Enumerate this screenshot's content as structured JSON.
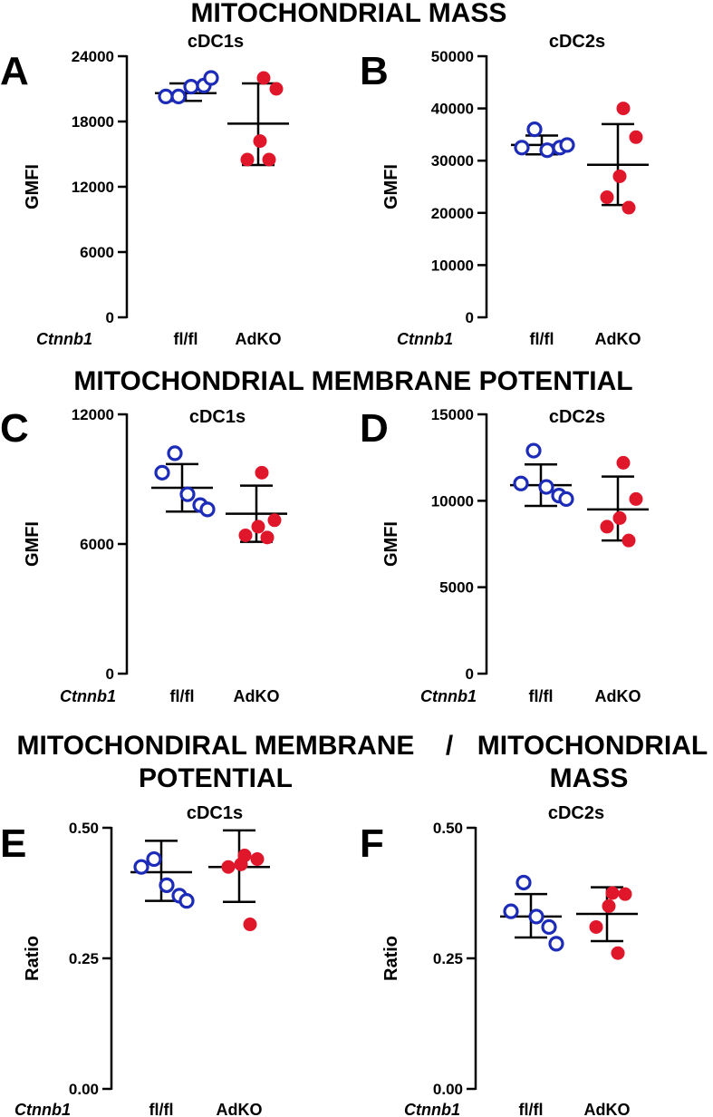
{
  "colors": {
    "flfl": "#1c2bb8",
    "adko": "#e0162b",
    "axis": "#000000"
  },
  "section_titles": {
    "s1": "MITOCHONDRIAL MASS",
    "s2": "MITOCHONDRIAL MEMBRANE POTENTIAL",
    "s3_left_line1": "MITOCHONDIRAL MEMBRANE",
    "s3_slash": "/",
    "s3_right_line1": "MITOCHONDRIAL",
    "s3_left_line2": "POTENTIAL",
    "s3_right_line2": "MASS"
  },
  "chart_data": [
    {
      "panel": "A",
      "type": "scatter",
      "title": "cDC1s",
      "ylabel": "GMFI",
      "xlabel_gene": "Ctnnb1",
      "categories": [
        "fl/fl",
        "AdKO"
      ],
      "ylim": [
        0,
        24000
      ],
      "yticks": [
        0,
        6000,
        12000,
        18000,
        24000
      ],
      "yticklabels": [
        "0",
        "6000",
        "12000",
        "18000",
        "24000"
      ],
      "series": [
        {
          "name": "fl/fl",
          "style": "open",
          "color": "#1c2bb8",
          "points": [
            20300,
            20300,
            21200,
            21300,
            22000
          ],
          "mean": 20600,
          "sd_low": 19900,
          "sd_high": 21500
        },
        {
          "name": "AdKO",
          "style": "filled",
          "color": "#e0162b",
          "points": [
            22000,
            21000,
            16200,
            14500,
            14500
          ],
          "mean": 17800,
          "sd_low": 14000,
          "sd_high": 21500
        }
      ]
    },
    {
      "panel": "B",
      "type": "scatter",
      "title": "cDC2s",
      "ylabel": "GMFI",
      "xlabel_gene": "Ctnnb1",
      "categories": [
        "fl/fl",
        "AdKO"
      ],
      "ylim": [
        0,
        50000
      ],
      "yticks": [
        0,
        10000,
        20000,
        30000,
        40000,
        50000
      ],
      "yticklabels": [
        "0",
        "10000",
        "20000",
        "30000",
        "40000",
        "50000"
      ],
      "series": [
        {
          "name": "fl/fl",
          "style": "open",
          "color": "#1c2bb8",
          "points": [
            36000,
            32500,
            32000,
            32500,
            33000
          ],
          "mean": 33000,
          "sd_low": 31200,
          "sd_high": 34800
        },
        {
          "name": "AdKO",
          "style": "filled",
          "color": "#e0162b",
          "points": [
            40000,
            34500,
            27000,
            23000,
            21000
          ],
          "mean": 29200,
          "sd_low": 21500,
          "sd_high": 37000
        }
      ]
    },
    {
      "panel": "C",
      "type": "scatter",
      "title": "cDC1s",
      "ylabel": "GMFI",
      "xlabel_gene": "Ctnnb1",
      "categories": [
        "fl/fl",
        "AdKO"
      ],
      "ylim": [
        0,
        12000
      ],
      "yticks": [
        0,
        6000,
        12000
      ],
      "yticklabels": [
        "0",
        "6000",
        "12000"
      ],
      "series": [
        {
          "name": "fl/fl",
          "style": "open",
          "color": "#1c2bb8",
          "points": [
            10200,
            9300,
            8300,
            7800,
            7600
          ],
          "mean": 8600,
          "sd_low": 7500,
          "sd_high": 9700
        },
        {
          "name": "AdKO",
          "style": "filled",
          "color": "#e0162b",
          "points": [
            9300,
            7100,
            6800,
            6400,
            6300
          ],
          "mean": 7400,
          "sd_low": 6100,
          "sd_high": 8700
        }
      ]
    },
    {
      "panel": "D",
      "type": "scatter",
      "title": "cDC2s",
      "ylabel": "GMFI",
      "xlabel_gene": "Ctnnb1",
      "categories": [
        "fl/fl",
        "AdKO"
      ],
      "ylim": [
        0,
        15000
      ],
      "yticks": [
        0,
        5000,
        10000,
        15000
      ],
      "yticklabels": [
        "0",
        "5000",
        "10000",
        "15000"
      ],
      "series": [
        {
          "name": "fl/fl",
          "style": "open",
          "color": "#1c2bb8",
          "points": [
            12900,
            11000,
            10800,
            10300,
            10100
          ],
          "mean": 10900,
          "sd_low": 9700,
          "sd_high": 12100
        },
        {
          "name": "AdKO",
          "style": "filled",
          "color": "#e0162b",
          "points": [
            12200,
            10100,
            9000,
            8500,
            7700
          ],
          "mean": 9500,
          "sd_low": 7700,
          "sd_high": 11400
        }
      ]
    },
    {
      "panel": "E",
      "type": "scatter",
      "title": "cDC1s",
      "ylabel": "Ratio",
      "xlabel_gene": "Ctnnb1",
      "categories": [
        "fl/fl",
        "AdKO"
      ],
      "ylim": [
        0,
        0.5
      ],
      "yticks": [
        0,
        0.25,
        0.5
      ],
      "yticklabels": [
        "0.00",
        "0.25",
        "0.50"
      ],
      "series": [
        {
          "name": "fl/fl",
          "style": "open",
          "color": "#1c2bb8",
          "points": [
            0.44,
            0.425,
            0.39,
            0.37,
            0.36
          ],
          "mean": 0.415,
          "sd_low": 0.36,
          "sd_high": 0.475
        },
        {
          "name": "AdKO",
          "style": "filled",
          "color": "#e0162b",
          "points": [
            0.447,
            0.44,
            0.43,
            0.425,
            0.315
          ],
          "mean": 0.425,
          "sd_low": 0.358,
          "sd_high": 0.495
        }
      ]
    },
    {
      "panel": "F",
      "type": "scatter",
      "title": "cDC2s",
      "ylabel": "Ratio",
      "xlabel_gene": "Ctnnb1",
      "categories": [
        "fl/fl",
        "AdKO"
      ],
      "ylim": [
        0,
        0.5
      ],
      "yticks": [
        0,
        0.25,
        0.5
      ],
      "yticklabels": [
        "0.00",
        "0.25",
        "0.50"
      ],
      "series": [
        {
          "name": "fl/fl",
          "style": "open",
          "color": "#1c2bb8",
          "points": [
            0.395,
            0.34,
            0.33,
            0.31,
            0.278
          ],
          "mean": 0.33,
          "sd_low": 0.29,
          "sd_high": 0.373
        },
        {
          "name": "AdKO",
          "style": "filled",
          "color": "#e0162b",
          "points": [
            0.375,
            0.373,
            0.35,
            0.31,
            0.26
          ],
          "mean": 0.335,
          "sd_low": 0.283,
          "sd_high": 0.386
        }
      ]
    }
  ]
}
